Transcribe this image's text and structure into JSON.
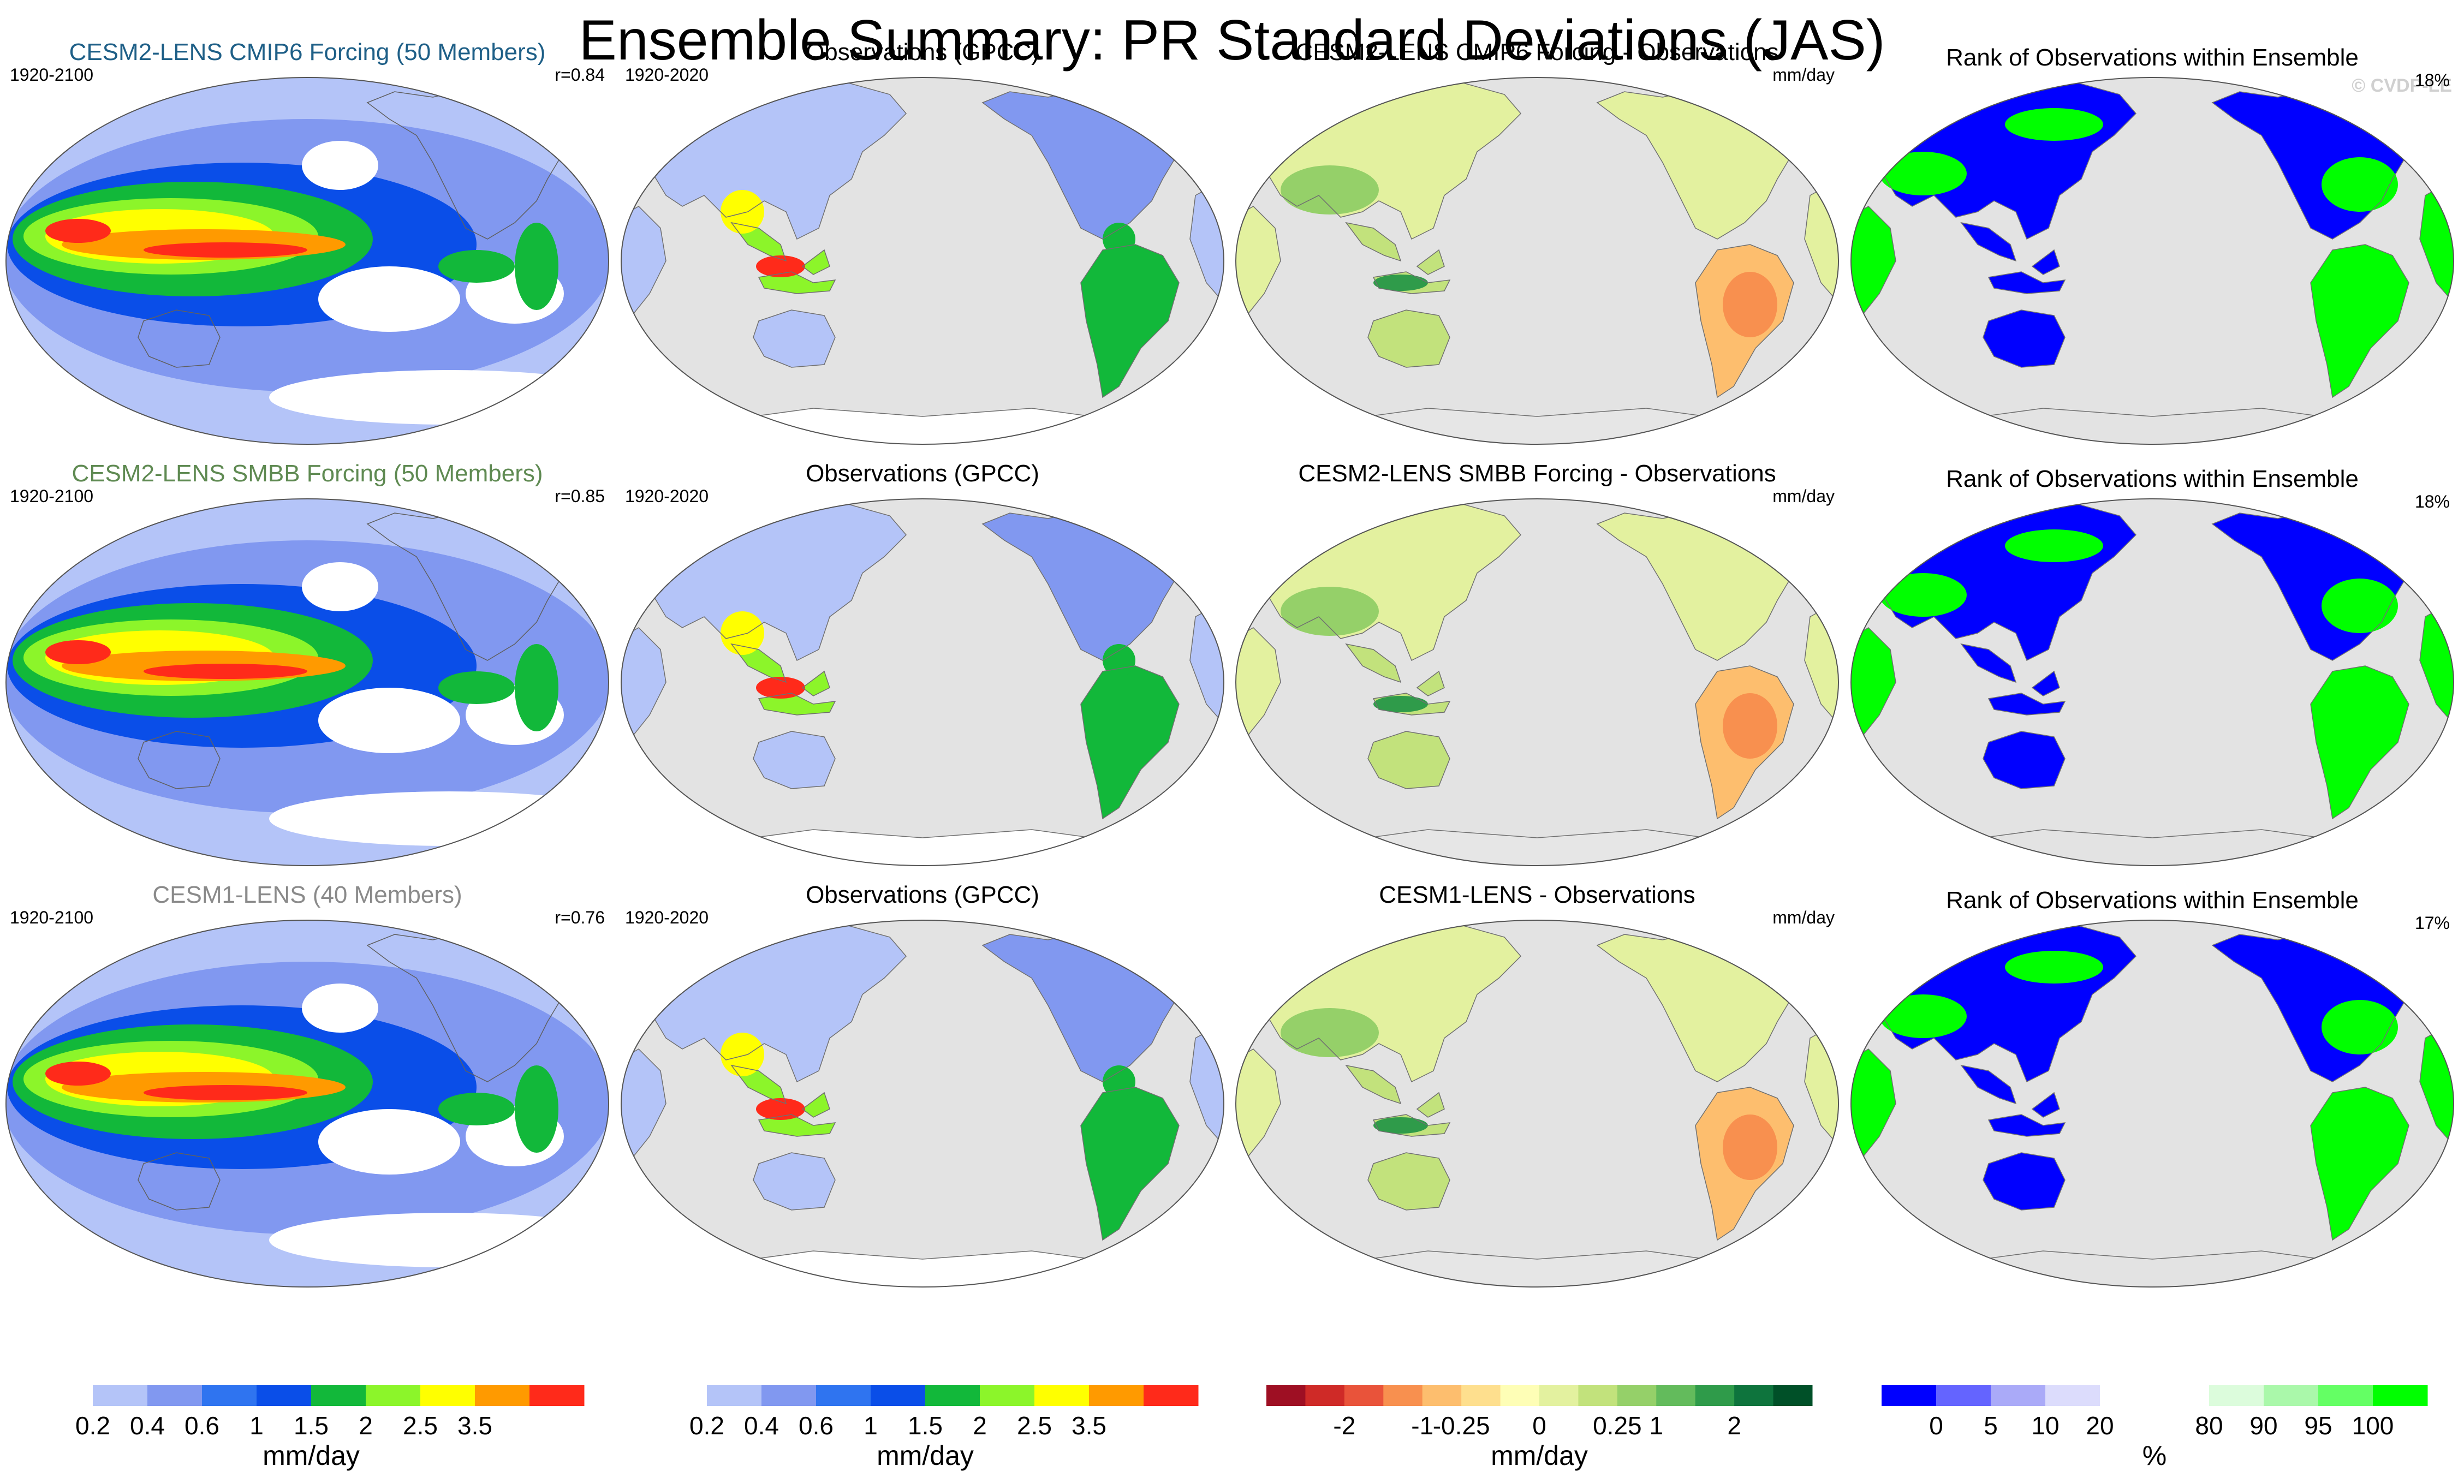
{
  "title": "Ensemble Summary: PR Standard Deviations (JAS)",
  "copyright": "© CVDP-LE",
  "colors": {
    "ocean_obs": "#e3e3e3",
    "model_blues": [
      "#ffffff",
      "#b4c4f8",
      "#8198f0",
      "#2f74f0",
      "#0a4ee8"
    ],
    "model_greens": [
      "#12b83a",
      "#8cf52a",
      "#ffff00"
    ],
    "model_hot": [
      "#ff9a00",
      "#ff2a1a"
    ],
    "rank_colors": [
      "#0000ff",
      "#00ff00"
    ]
  },
  "rows": [
    {
      "model": {
        "title": "CESM2-LENS CMIP6 Forcing (50 Members)",
        "title_color": "#1e5f87",
        "years": "1920-2100",
        "r": "r=0.84"
      },
      "obs": {
        "title": "Observations (GPCC)",
        "years": "1920-2020"
      },
      "diff": {
        "title": "CESM2-LENS CMIP6 Forcing - Observations",
        "units": "mm/day"
      },
      "rank": {
        "title": "Rank of Observations within Ensemble",
        "pct": "18%"
      }
    },
    {
      "model": {
        "title": "CESM2-LENS SMBB Forcing (50 Members)",
        "title_color": "#5f8a52",
        "years": "1920-2100",
        "r": "r=0.85"
      },
      "obs": {
        "title": "Observations (GPCC)",
        "years": "1920-2020"
      },
      "diff": {
        "title": "CESM2-LENS SMBB Forcing - Observations",
        "units": "mm/day"
      },
      "rank": {
        "title": "Rank of Observations within Ensemble",
        "pct": "18%"
      }
    },
    {
      "model": {
        "title": "CESM1-LENS (40 Members)",
        "title_color": "#8a8a8a",
        "years": "1920-2100",
        "r": "r=0.76"
      },
      "obs": {
        "title": "Observations (GPCC)",
        "years": "1920-2020"
      },
      "diff": {
        "title": "CESM1-LENS - Observations",
        "units": "mm/day"
      },
      "rank": {
        "title": "Rank of Observations within Ensemble",
        "pct": "17%"
      }
    }
  ],
  "chart_data": {
    "type": "heatmap",
    "projection": "Robinson (Pacific-centered) global maps",
    "grid": "3 rows x 4 columns",
    "colorbars": [
      {
        "name": "model-std",
        "units": "mm/day",
        "colors": [
          "#ffffff",
          "#b4c4f8",
          "#8198f0",
          "#2f74f0",
          "#0a4ee8",
          "#12b83a",
          "#8cf52a",
          "#ffff00",
          "#ff9a00",
          "#ff2a1a"
        ],
        "tick_labels": [
          "0.2",
          "0.4",
          "0.6",
          "1",
          "1.5",
          "2",
          "2.5",
          "3.5"
        ]
      },
      {
        "name": "obs-std",
        "units": "mm/day",
        "colors": [
          "#ffffff",
          "#b4c4f8",
          "#8198f0",
          "#2f74f0",
          "#0a4ee8",
          "#12b83a",
          "#8cf52a",
          "#ffff00",
          "#ff9a00",
          "#ff2a1a"
        ],
        "tick_labels": [
          "0.2",
          "0.4",
          "0.6",
          "1",
          "1.5",
          "2",
          "2.5",
          "3.5"
        ]
      },
      {
        "name": "difference",
        "units": "mm/day",
        "colors": [
          "#9e0f23",
          "#cf2a27",
          "#e9533a",
          "#f8904f",
          "#fdbe6e",
          "#fedf8e",
          "#fefeb6",
          "#e3f19f",
          "#c2e27c",
          "#95d069",
          "#63bb5c",
          "#2f9b4a",
          "#0e743d",
          "#005028"
        ],
        "tick_labels": [
          "-2",
          "-1",
          "-0.25",
          "0",
          "0.25",
          "1",
          "2"
        ]
      },
      {
        "name": "rank",
        "units": "%",
        "colors": [
          "#0000ff",
          "#6464ff",
          "#aaaaf8",
          "#dcdcfc",
          "#ffffff",
          "#ffffff",
          "#dcfcdc",
          "#aaf8aa",
          "#64ff64",
          "#00ff00"
        ],
        "tick_labels": [
          "0",
          "5",
          "10",
          "20",
          "80",
          "90",
          "95",
          "100"
        ]
      }
    ],
    "pattern_correlations": [
      {
        "model": "CESM2-LENS CMIP6 Forcing (50 Members)",
        "r": 0.84
      },
      {
        "model": "CESM2-LENS SMBB Forcing (50 Members)",
        "r": 0.85
      },
      {
        "model": "CESM1-LENS (40 Members)",
        "r": 0.76
      }
    ],
    "rank_percent": [
      18,
      18,
      17
    ]
  }
}
